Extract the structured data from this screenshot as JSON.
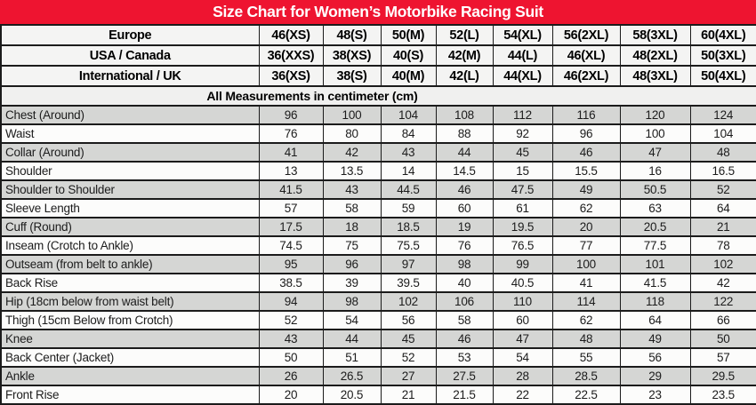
{
  "title": "Size Chart for Women’s Motorbike Racing Suit",
  "note": "All Measurements in centimeter (cm)",
  "colors": {
    "title_bg": "#ee1430",
    "title_text": "#ffffff",
    "header_row_bg": "#f4f4f3",
    "note_row_bg": "#f0f0ef",
    "row_gray": "#d5d6d4",
    "row_white": "#fcfcfb",
    "border": "#1b1b1b"
  },
  "size_rows": [
    {
      "label": "Europe",
      "values": [
        "46(XS)",
        "48(S)",
        "50(M)",
        "52(L)",
        "54(XL)",
        "56(2XL)",
        "58(3XL)",
        "60(4XL)"
      ]
    },
    {
      "label": "USA / Canada",
      "values": [
        "36(XXS)",
        "38(XS)",
        "40(S)",
        "42(M)",
        "44(L)",
        "46(XL)",
        "48(2XL)",
        "50(3XL)"
      ]
    },
    {
      "label": "International / UK",
      "values": [
        "36(XS)",
        "38(S)",
        "40(M)",
        "42(L)",
        "44(XL)",
        "46(2XL)",
        "48(3XL)",
        "50(4XL)"
      ]
    }
  ],
  "measurement_rows": [
    {
      "label": "Chest (Around)",
      "values": [
        96,
        100,
        104,
        108,
        112,
        116,
        120,
        124
      ]
    },
    {
      "label": "Waist",
      "values": [
        76,
        80,
        84,
        88,
        92,
        96,
        100,
        104
      ]
    },
    {
      "label": "Collar (Around)",
      "values": [
        41,
        42,
        43,
        44,
        45,
        46,
        47,
        48
      ]
    },
    {
      "label": "Shoulder",
      "values": [
        13,
        13.5,
        14,
        14.5,
        15,
        15.5,
        16,
        16.5
      ]
    },
    {
      "label": "Shoulder to Shoulder",
      "values": [
        41.5,
        43,
        44.5,
        46,
        47.5,
        49,
        50.5,
        52
      ]
    },
    {
      "label": "Sleeve Length",
      "values": [
        57,
        58,
        59,
        60,
        61,
        62,
        63,
        64
      ]
    },
    {
      "label": "Cuff (Round)",
      "values": [
        17.5,
        18,
        18.5,
        19,
        19.5,
        20,
        20.5,
        21
      ]
    },
    {
      "label": "Inseam (Crotch to Ankle)",
      "values": [
        74.5,
        75,
        75.5,
        76,
        76.5,
        77,
        77.5,
        78
      ]
    },
    {
      "label": "Outseam (from belt to ankle)",
      "values": [
        95,
        96,
        97,
        98,
        99,
        100,
        101,
        102
      ]
    },
    {
      "label": "Back Rise",
      "values": [
        38.5,
        39,
        39.5,
        40,
        40.5,
        41,
        41.5,
        42
      ]
    },
    {
      "label": "Hip (18cm below from waist belt)",
      "values": [
        94,
        98,
        102,
        106,
        110,
        114,
        118,
        122
      ]
    },
    {
      "label": "Thigh (15cm Below from Crotch)",
      "values": [
        52,
        54,
        56,
        58,
        60,
        62,
        64,
        66
      ]
    },
    {
      "label": "Knee",
      "values": [
        43,
        44,
        45,
        46,
        47,
        48,
        49,
        50
      ]
    },
    {
      "label": "Back Center (Jacket)",
      "values": [
        50,
        51,
        52,
        53,
        54,
        55,
        56,
        57
      ]
    },
    {
      "label": "Ankle",
      "values": [
        26,
        26.5,
        27,
        27.5,
        28,
        28.5,
        29,
        29.5
      ]
    },
    {
      "label": "Front Rise",
      "values": [
        20,
        20.5,
        21,
        21.5,
        22,
        22.5,
        23,
        23.5
      ]
    }
  ]
}
